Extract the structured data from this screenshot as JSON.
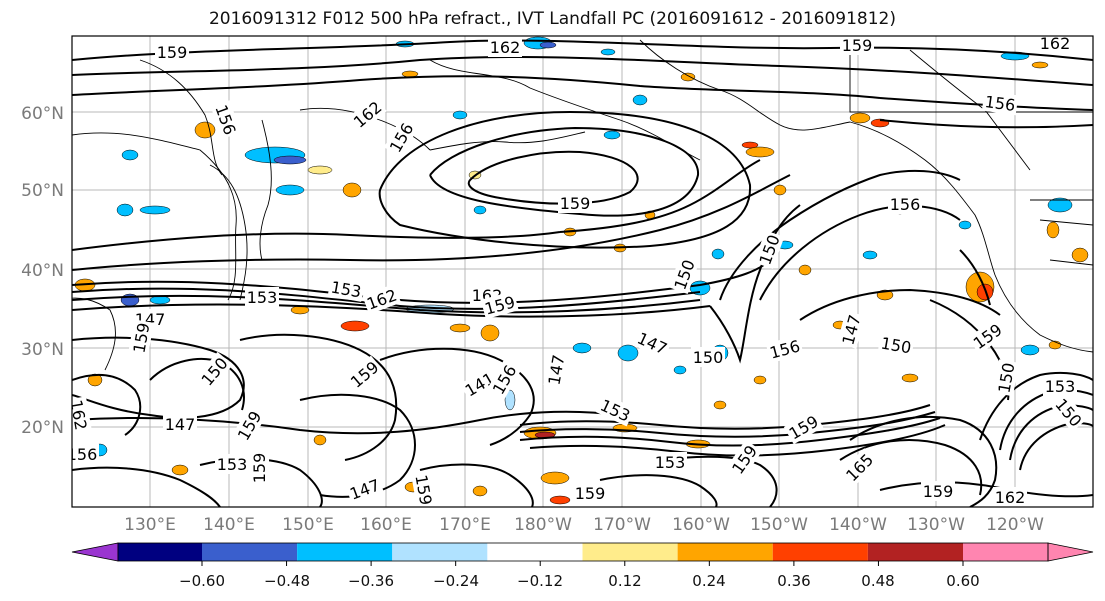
{
  "title": "2016091312 F012 500 hPa refract., IVT Landfall PC (2016091612 - 2016091812)",
  "map": {
    "lat_labels": [
      "60°N",
      "50°N",
      "40°N",
      "30°N",
      "20°N"
    ],
    "lon_labels": [
      "130°E",
      "140°E",
      "150°E",
      "160°E",
      "170°E",
      "180°W",
      "170°W",
      "160°W",
      "150°W",
      "140°W",
      "130°W",
      "120°W"
    ],
    "contour_labels": [
      "159",
      "162",
      "159",
      "162",
      "156",
      "162",
      "156",
      "159",
      "156",
      "150",
      "156",
      "162",
      "153",
      "162",
      "153",
      "159",
      "150",
      "147",
      "150",
      "156",
      "147",
      "150",
      "159",
      "150",
      "153",
      "150",
      "147",
      "141",
      "156",
      "159",
      "147",
      "159",
      "150",
      "147",
      "159",
      "153",
      "159",
      "147",
      "159",
      "153",
      "159",
      "153",
      "159",
      "165"
    ]
  },
  "colorbar": {
    "ticks": [
      "−0.60",
      "−0.48",
      "−0.36",
      "−0.24",
      "−0.12",
      "0.12",
      "0.24",
      "0.36",
      "0.48",
      "0.60"
    ],
    "colors": [
      "#9a35d0",
      "#000080",
      "#3a5fcd",
      "#00bfff",
      "#b0e2ff",
      "#ffffff",
      "#ffec8b",
      "#ffa500",
      "#ff4000",
      "#b22222",
      "#ff85b0"
    ]
  }
}
